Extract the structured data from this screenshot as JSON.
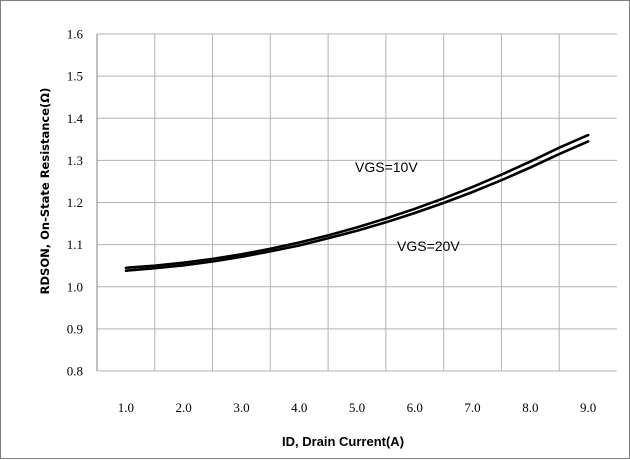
{
  "chart_data": {
    "type": "line",
    "title": "",
    "xlabel": "ID, Drain Current(A)",
    "ylabel": "RDSON, On-State Resistance(Ω)",
    "xlim": [
      0.5,
      9.5
    ],
    "ylim": [
      0.8,
      1.6
    ],
    "x_ticks": [
      1.0,
      2.0,
      3.0,
      4.0,
      5.0,
      6.0,
      7.0,
      8.0,
      9.0
    ],
    "x_tick_labels": [
      "1.0",
      "2.0",
      "3.0",
      "4.0",
      "5.0",
      "6.0",
      "7.0",
      "8.0",
      "9.0"
    ],
    "y_ticks": [
      0.8,
      0.9,
      1.0,
      1.1,
      1.2,
      1.3,
      1.4,
      1.5,
      1.6
    ],
    "y_tick_labels": [
      "0.8",
      "0.9",
      "1.0",
      "1.1",
      "1.2",
      "1.3",
      "1.4",
      "1.5",
      "1.6"
    ],
    "grid": true,
    "annotations": [
      "VGS=10V",
      "VGS=20V"
    ],
    "series": [
      {
        "label": "VGS=10V",
        "color": "#000000",
        "x": [
          1.0,
          1.5,
          2.0,
          2.5,
          3.0,
          3.5,
          4.0,
          4.5,
          5.0,
          5.5,
          6.0,
          6.5,
          7.0,
          7.5,
          8.0,
          8.5,
          9.0
        ],
        "y": [
          1.045,
          1.05,
          1.057,
          1.066,
          1.077,
          1.09,
          1.105,
          1.122,
          1.141,
          1.162,
          1.185,
          1.21,
          1.237,
          1.266,
          1.297,
          1.33,
          1.36
        ]
      },
      {
        "label": "VGS=20V",
        "color": "#000000",
        "x": [
          1.0,
          1.5,
          2.0,
          2.5,
          3.0,
          3.5,
          4.0,
          4.5,
          5.0,
          5.5,
          6.0,
          6.5,
          7.0,
          7.5,
          8.0,
          8.5,
          9.0
        ],
        "y": [
          1.038,
          1.044,
          1.051,
          1.06,
          1.071,
          1.084,
          1.098,
          1.115,
          1.133,
          1.153,
          1.175,
          1.199,
          1.225,
          1.253,
          1.283,
          1.315,
          1.345
        ]
      }
    ]
  }
}
